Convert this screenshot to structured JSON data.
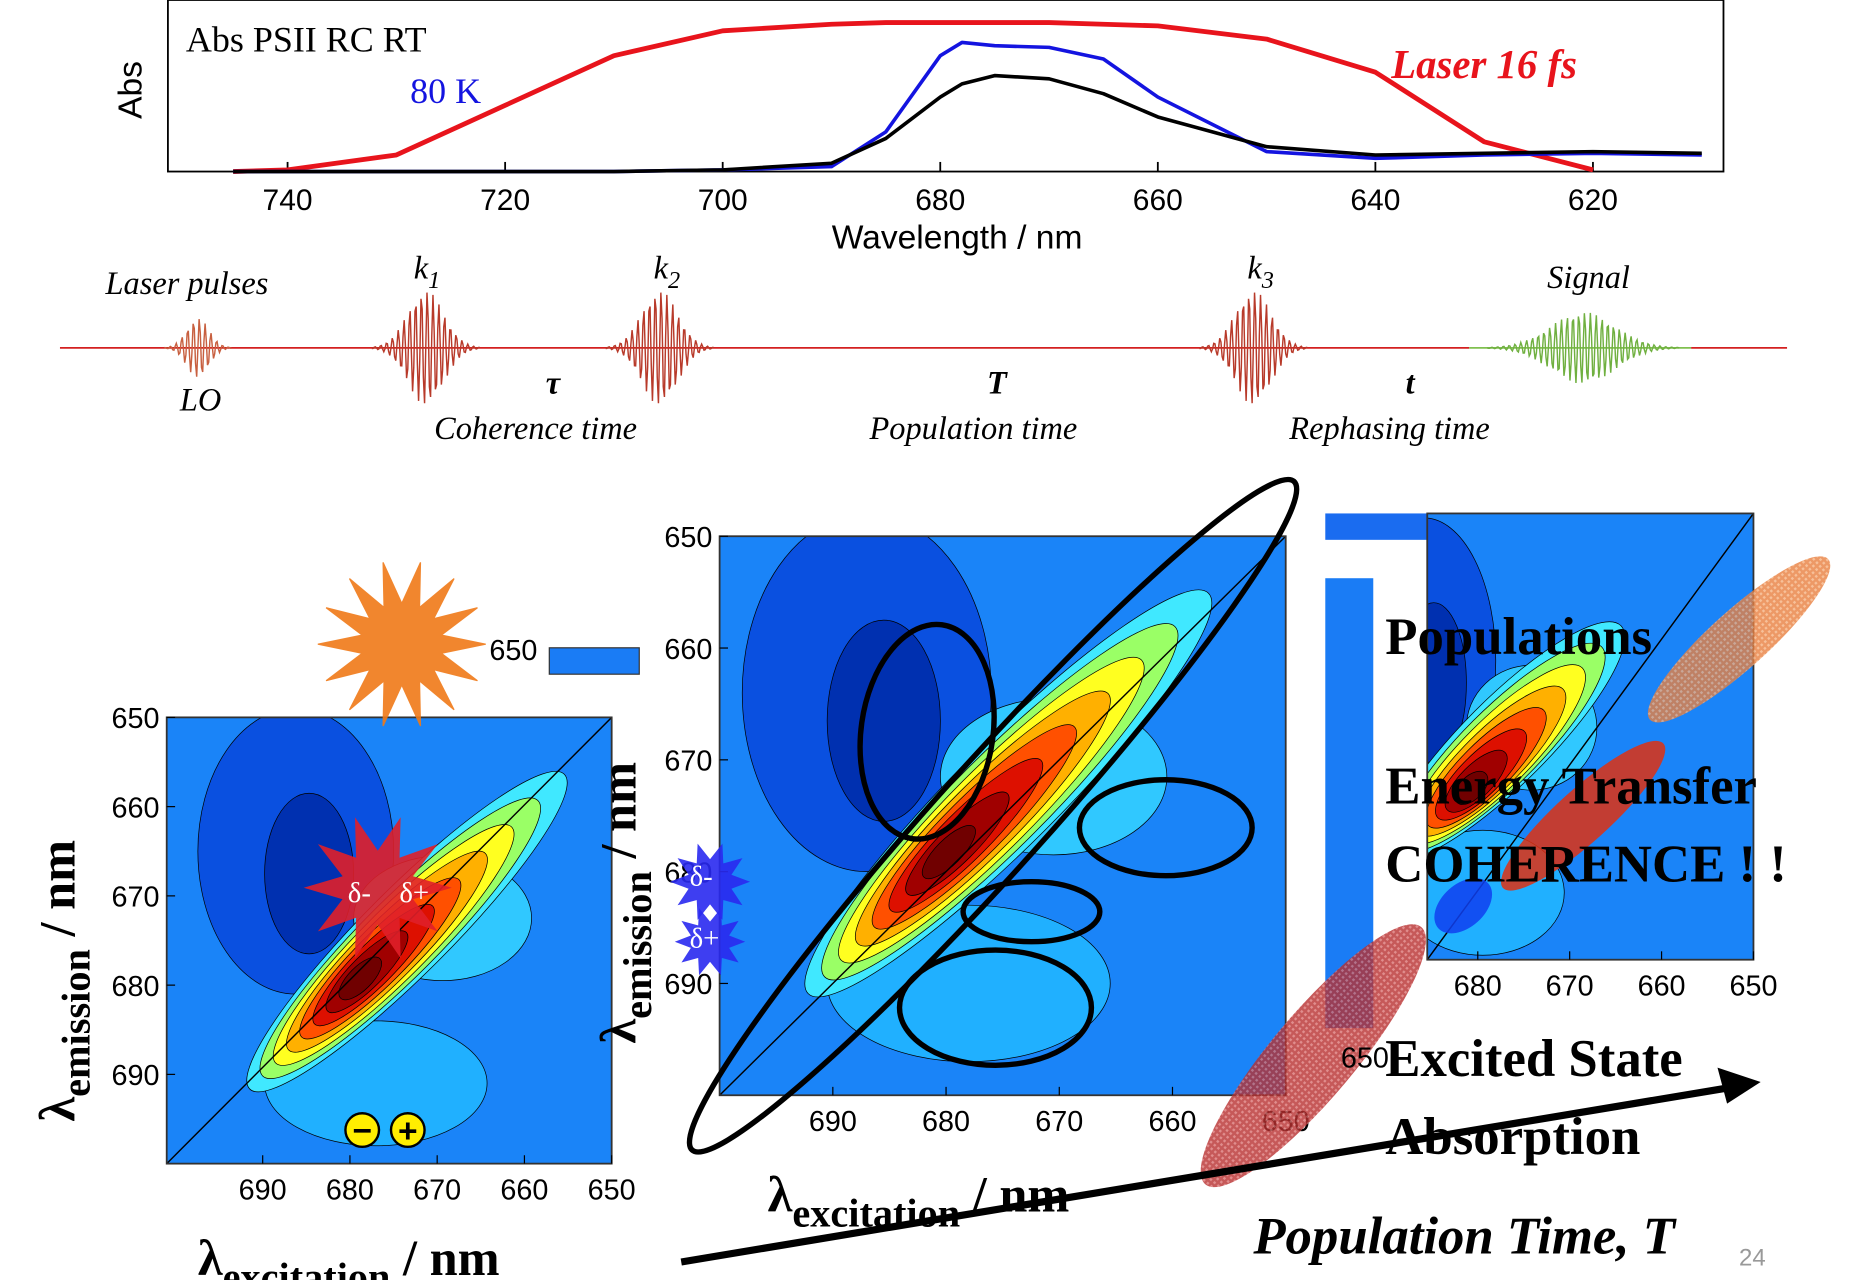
{
  "chart_data": [
    {
      "type": "line",
      "title": "Abs PSII RC RT",
      "xlabel": "Wavelength / nm",
      "ylabel": "Abs",
      "annotations": [
        "80 K",
        "Laser  16 fs"
      ],
      "x": [
        745,
        740,
        730,
        720,
        710,
        700,
        690,
        685,
        680,
        678,
        675,
        670,
        665,
        660,
        650,
        640,
        630,
        620,
        610
      ],
      "xlim": [
        751,
        608
      ],
      "xticks": [
        740,
        720,
        700,
        680,
        660,
        640,
        620
      ],
      "ylim": [
        0,
        1
      ],
      "series": [
        {
          "name": "Laser",
          "color": "#e8141c",
          "values": [
            0.0,
            0.01,
            0.1,
            0.4,
            0.7,
            0.85,
            0.89,
            0.9,
            0.9,
            0.9,
            0.9,
            0.9,
            0.89,
            0.88,
            0.8,
            0.6,
            0.18,
            0.01,
            null
          ]
        },
        {
          "name": "80 K",
          "color": "#1414e0",
          "values": [
            0.0,
            0.0,
            0.0,
            0.0,
            0.0,
            0.01,
            0.03,
            0.24,
            0.7,
            0.78,
            0.76,
            0.75,
            0.68,
            0.45,
            0.12,
            0.08,
            0.1,
            0.11,
            0.1
          ]
        },
        {
          "name": "RT",
          "color": "#000000",
          "values": [
            0.0,
            0.0,
            0.0,
            0.0,
            0.0,
            0.01,
            0.05,
            0.2,
            0.45,
            0.53,
            0.58,
            0.56,
            0.47,
            0.33,
            0.15,
            0.1,
            0.11,
            0.12,
            0.11
          ]
        }
      ]
    },
    {
      "type": "contour",
      "xlim": [
        701,
        650
      ],
      "xticks": [
        690,
        680,
        670,
        660,
        650
      ],
      "ylim": [
        650,
        700
      ],
      "yticks": [
        650,
        660,
        670,
        680,
        690
      ],
      "xlabel": {
        "symbol": "λ",
        "subscript": "excitation",
        "suffix": " / nm"
      },
      "ylabel": {
        "symbol": "λ",
        "subscript": "emission",
        "suffix": " / nm"
      }
    },
    {
      "type": "contour",
      "xlim": [
        700,
        650
      ],
      "xticks": [
        690,
        680,
        670,
        660,
        650
      ],
      "ylim": [
        650,
        700
      ],
      "yticks": [
        650,
        660,
        670,
        680,
        690
      ],
      "xlabel": {
        "symbol": "λ",
        "subscript": "excitation",
        "suffix": " / nm"
      },
      "ylabel": {
        "symbol": "λ",
        "subscript": "emission",
        "suffix": " / nm"
      }
    },
    {
      "type": "contour",
      "xlim": [
        685.5,
        650
      ],
      "xticks": [
        680,
        670,
        660,
        650
      ]
    }
  ],
  "pulse_diagram": {
    "title": "Laser pulses",
    "lo": "LO",
    "signal": "Signal",
    "pulses": [
      {
        "symbol": "k",
        "subscript": "1"
      },
      {
        "symbol": "k",
        "subscript": "2"
      },
      {
        "symbol": "k",
        "subscript": "3"
      }
    ],
    "intervals": [
      {
        "symbol": "τ",
        "label": "Coherence time"
      },
      {
        "symbol": "T",
        "label": "Population time"
      },
      {
        "symbol": "t",
        "label": "Rephasing time"
      }
    ]
  },
  "annotations": {
    "populations": "Populations",
    "energy_transfer": "Energy Transfer",
    "coherence": "COHERENCE ! !",
    "esa_line1": "Excited State",
    "esa_line2": "Absorption",
    "population_time": "Population Time, ",
    "population_time_symbol": "T",
    "red_charges": [
      "δ-",
      "δ+"
    ],
    "blue_charges": [
      "δ-",
      "δ+"
    ],
    "ion_signs": [
      "−",
      "+"
    ],
    "stray_labels": [
      "650",
      "650"
    ]
  },
  "page_number": "24"
}
